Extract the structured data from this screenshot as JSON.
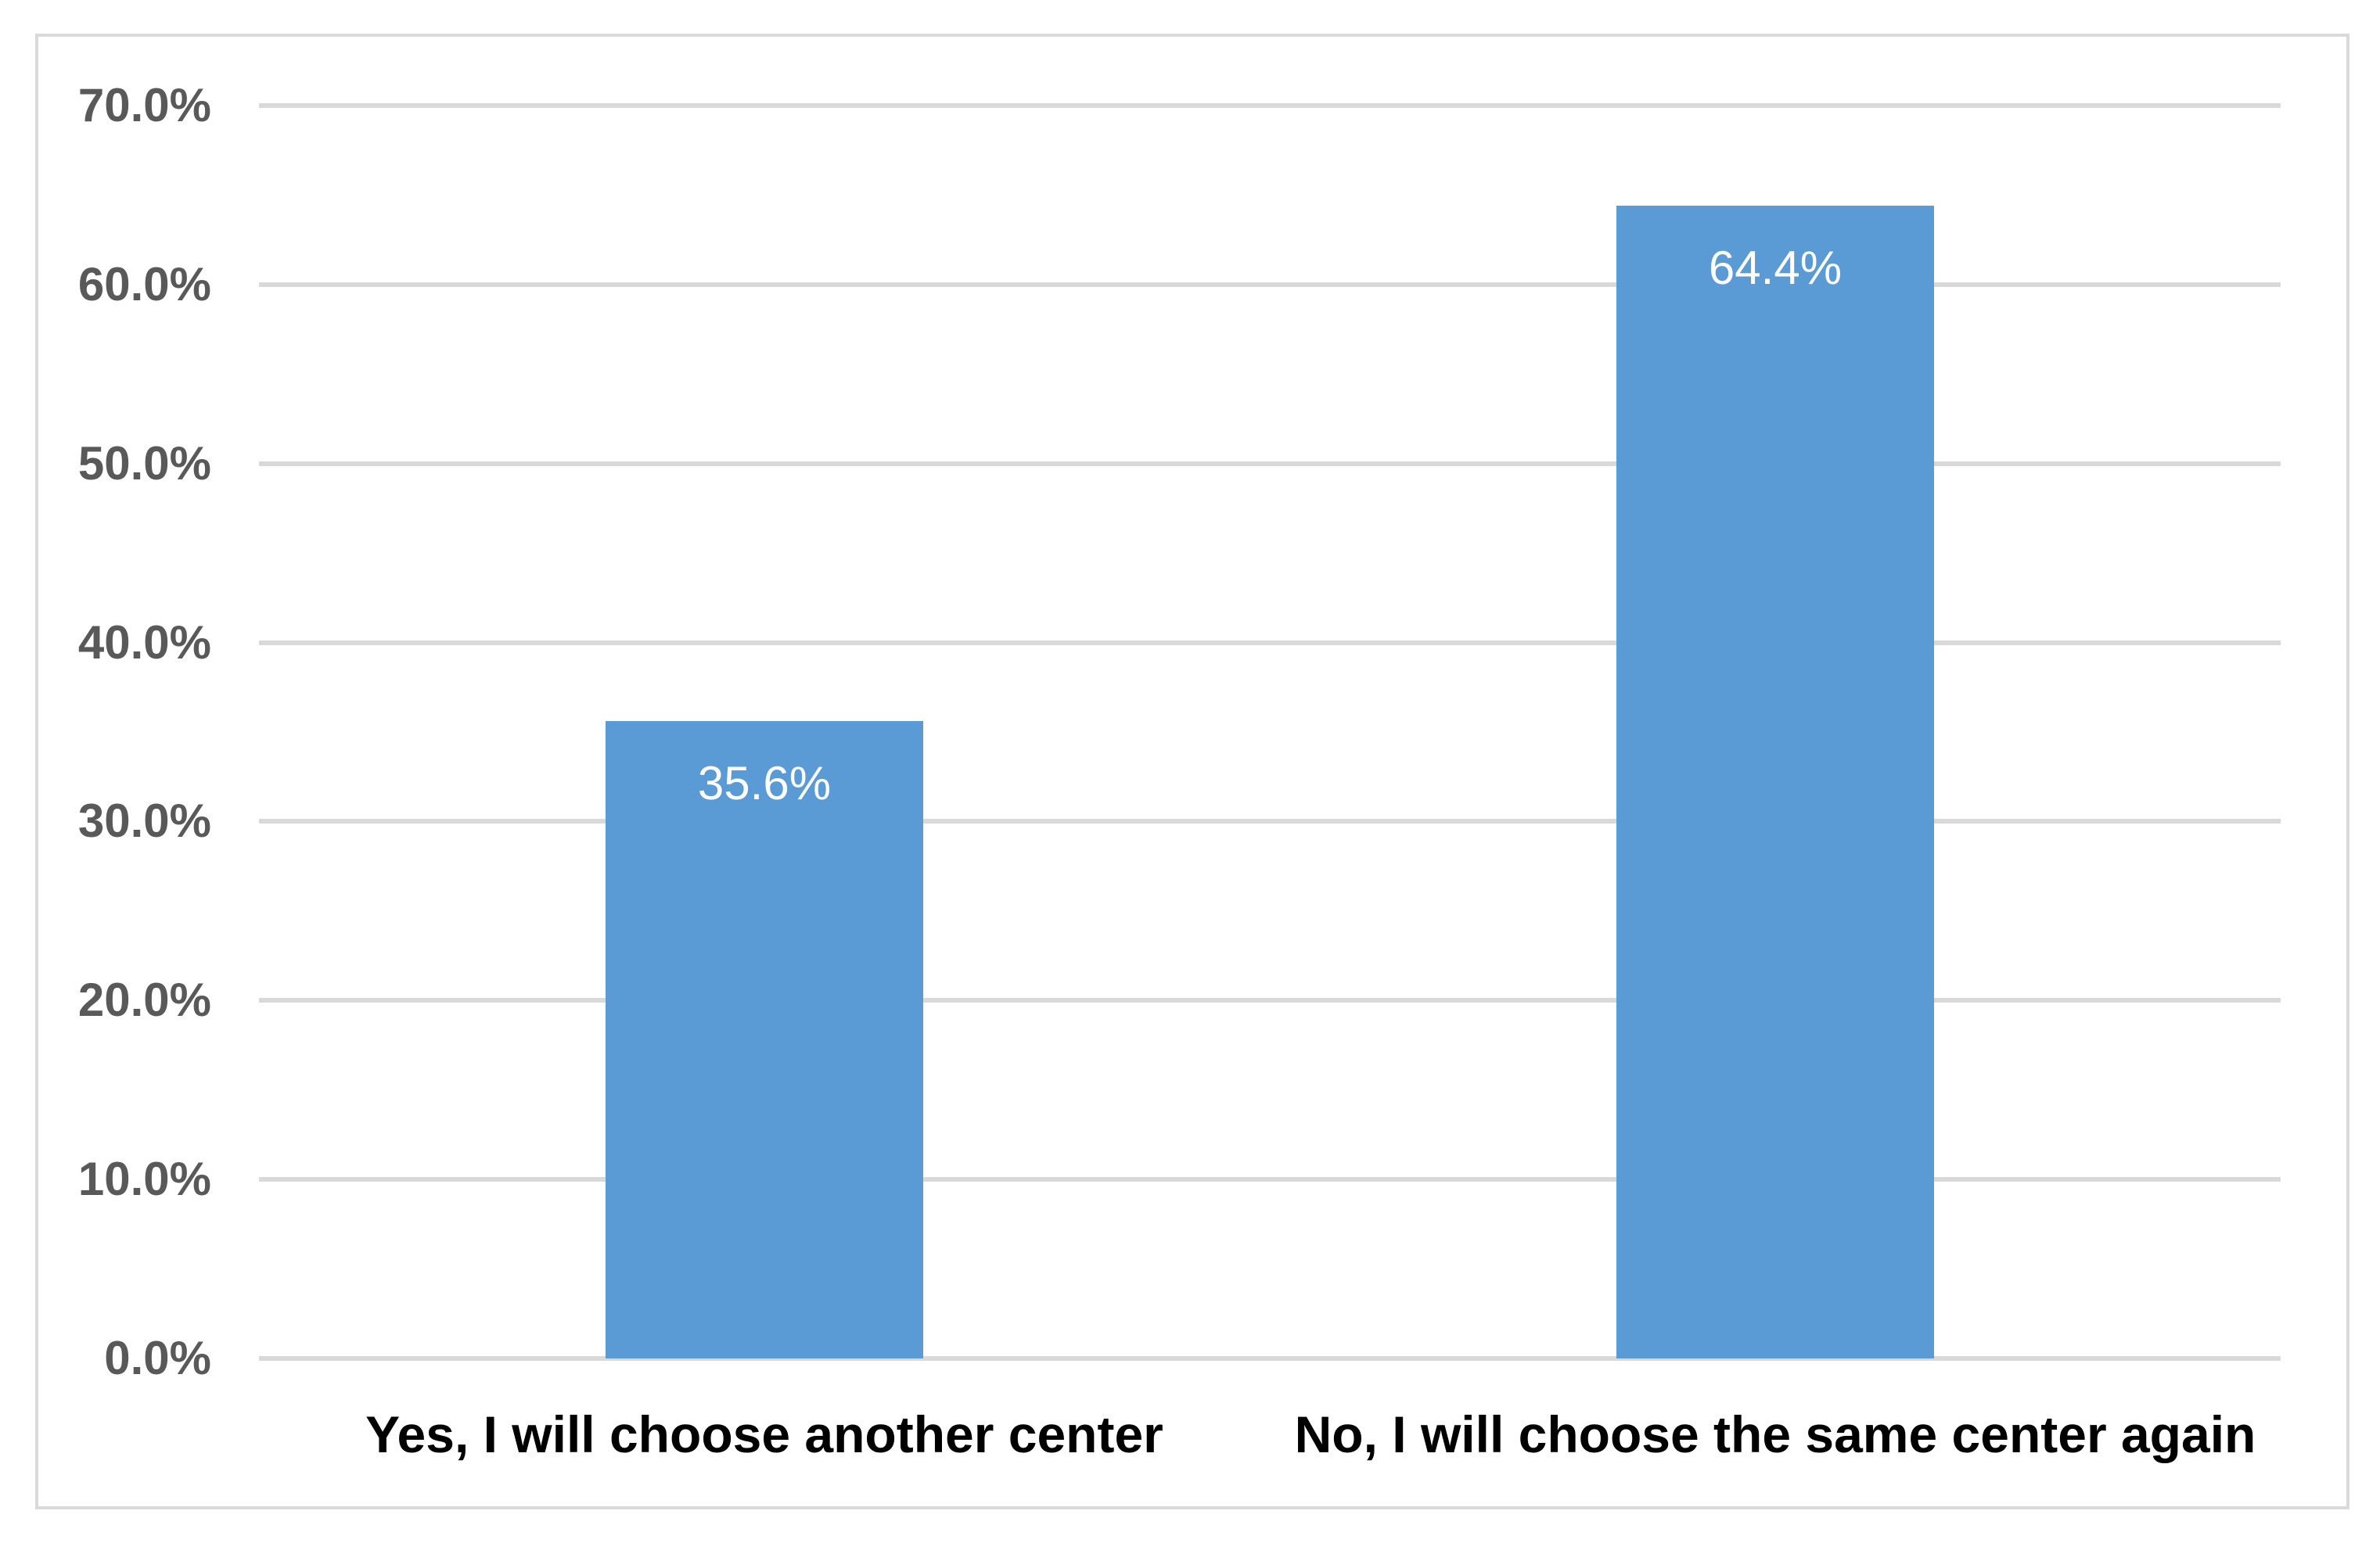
{
  "chart_data": {
    "type": "bar",
    "title": "",
    "categories": [
      "Yes, I will choose another center",
      "No, I will choose the same center again"
    ],
    "values": [
      35.6,
      64.4
    ],
    "value_labels": [
      "35.6%",
      "64.4%"
    ],
    "y_ticks": [
      "0.0%",
      "10.0%",
      "20.0%",
      "30.0%",
      "40.0%",
      "50.0%",
      "60.0%",
      "70.0%"
    ],
    "y_tick_values": [
      0,
      10,
      20,
      30,
      40,
      50,
      60,
      70
    ],
    "ylim": [
      0,
      70
    ],
    "xlabel": "",
    "ylabel": "",
    "legend_position": "none",
    "grid": true,
    "colors": {
      "bar": "#5B9BD5",
      "gridline": "#D9D9D9",
      "frame_border": "#D9D9D9",
      "y_tick_label": "#595959",
      "category_label": "#000000",
      "data_label": "#FFFFFF",
      "background": "#FFFFFF"
    }
  }
}
